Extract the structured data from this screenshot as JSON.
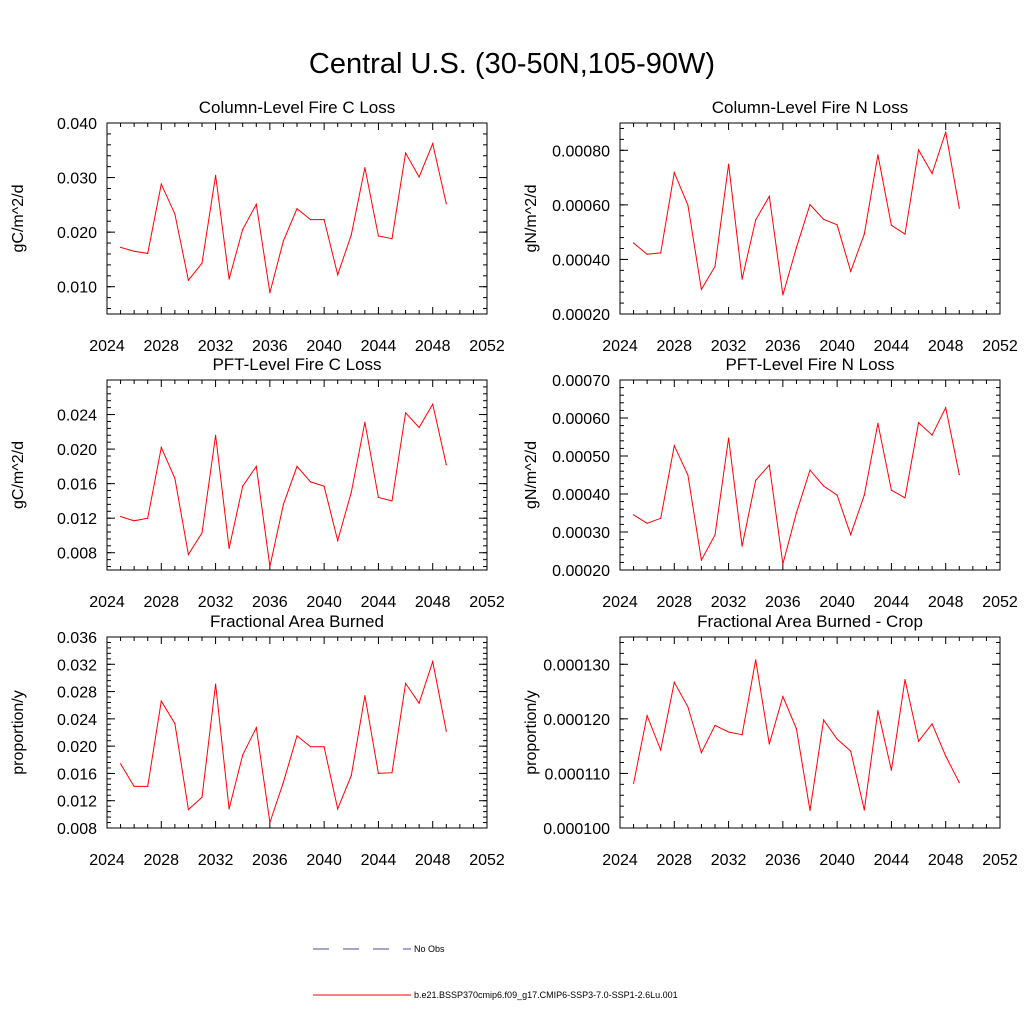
{
  "title": "Central U.S. (30-50N,105-90W)",
  "chart_data": [
    {
      "type": "line",
      "title": "Column-Level Fire C Loss",
      "ylabel": "gC/m^2/d",
      "xlim": [
        2024,
        2052
      ],
      "ylim": [
        0.005,
        0.04
      ],
      "x_ticks": [
        2024,
        2028,
        2032,
        2036,
        2040,
        2044,
        2048,
        2052
      ],
      "y_ticks": [
        "0.010",
        "0.020",
        "0.030",
        "0.040"
      ],
      "y_tick_values": [
        0.01,
        0.02,
        0.03,
        0.04
      ],
      "y_minor_step": 0.002,
      "x": [
        2025,
        2026,
        2027,
        2028,
        2029,
        2030,
        2031,
        2032,
        2033,
        2034,
        2035,
        2036,
        2037,
        2038,
        2039,
        2040,
        2041,
        2042,
        2043,
        2044,
        2045,
        2046,
        2047,
        2048,
        2049
      ],
      "series": [
        {
          "name": "b.e21.BSSP370cmip6.f09_g17.CMIP6-SSP3-7.0-SSP1-2.6Lu.001",
          "color": "#ff0000",
          "values": [
            0.0172,
            0.0165,
            0.0161,
            0.0288,
            0.0233,
            0.0112,
            0.0143,
            0.0304,
            0.0114,
            0.0205,
            0.0251,
            0.0089,
            0.0184,
            0.0243,
            0.0223,
            0.0223,
            0.0122,
            0.0195,
            0.0318,
            0.0193,
            0.0188,
            0.0345,
            0.0301,
            0.0362,
            0.0252
          ]
        }
      ]
    },
    {
      "type": "line",
      "title": "Column-Level Fire N Loss",
      "ylabel": "gN/m^2/d",
      "xlim": [
        2024,
        2052
      ],
      "ylim": [
        0.0002,
        0.0009
      ],
      "x_ticks": [
        2024,
        2028,
        2032,
        2036,
        2040,
        2044,
        2048,
        2052
      ],
      "y_ticks": [
        "0.00020",
        "0.00040",
        "0.00060",
        "0.00080"
      ],
      "y_tick_values": [
        0.0002,
        0.0004,
        0.0006,
        0.0008
      ],
      "y_minor_step": 4e-05,
      "x": [
        2025,
        2026,
        2027,
        2028,
        2029,
        2030,
        2031,
        2032,
        2033,
        2034,
        2035,
        2036,
        2037,
        2038,
        2039,
        2040,
        2041,
        2042,
        2043,
        2044,
        2045,
        2046,
        2047,
        2048,
        2049
      ],
      "series": [
        {
          "name": "b.e21.BSSP370cmip6.f09_g17.CMIP6-SSP3-7.0-SSP1-2.6Lu.001",
          "color": "#ff0000",
          "values": [
            0.00046,
            0.000419,
            0.000424,
            0.000718,
            0.000599,
            0.00029,
            0.000374,
            0.000749,
            0.000328,
            0.000545,
            0.000631,
            0.00027,
            0.000443,
            0.000601,
            0.000547,
            0.000527,
            0.000356,
            0.000493,
            0.000783,
            0.000525,
            0.000493,
            0.000801,
            0.000715,
            0.000867,
            0.000588
          ]
        }
      ]
    },
    {
      "type": "line",
      "title": "PFT-Level Fire C Loss",
      "ylabel": "gC/m^2/d",
      "xlim": [
        2024,
        2052
      ],
      "ylim": [
        0.006,
        0.028
      ],
      "x_ticks": [
        2024,
        2028,
        2032,
        2036,
        2040,
        2044,
        2048,
        2052
      ],
      "y_ticks": [
        "0.008",
        "0.012",
        "0.016",
        "0.020",
        "0.024"
      ],
      "y_tick_values": [
        0.008,
        0.012,
        0.016,
        0.02,
        0.024
      ],
      "y_minor_step": 0.0008,
      "x": [
        2025,
        2026,
        2027,
        2028,
        2029,
        2030,
        2031,
        2032,
        2033,
        2034,
        2035,
        2036,
        2037,
        2038,
        2039,
        2040,
        2041,
        2042,
        2043,
        2044,
        2045,
        2046,
        2047,
        2048,
        2049
      ],
      "series": [
        {
          "name": "b.e21.BSSP370cmip6.f09_g17.CMIP6-SSP3-7.0-SSP1-2.6Lu.001",
          "color": "#ff0000",
          "values": [
            0.0122,
            0.0117,
            0.012,
            0.0202,
            0.0166,
            0.0078,
            0.0103,
            0.0216,
            0.0085,
            0.0157,
            0.018,
            0.0064,
            0.0136,
            0.018,
            0.0162,
            0.0157,
            0.0094,
            0.015,
            0.0231,
            0.0144,
            0.014,
            0.0242,
            0.0225,
            0.0252,
            0.0182
          ]
        }
      ]
    },
    {
      "type": "line",
      "title": "PFT-Level Fire N Loss",
      "ylabel": "gN/m^2/d",
      "xlim": [
        2024,
        2052
      ],
      "ylim": [
        0.0002,
        0.0007
      ],
      "x_ticks": [
        2024,
        2028,
        2032,
        2036,
        2040,
        2044,
        2048,
        2052
      ],
      "y_ticks": [
        "0.00020",
        "0.00030",
        "0.00040",
        "0.00050",
        "0.00060",
        "0.00070"
      ],
      "y_tick_values": [
        0.0002,
        0.0003,
        0.0004,
        0.0005,
        0.0006,
        0.0007
      ],
      "y_minor_step": 2e-05,
      "x": [
        2025,
        2026,
        2027,
        2028,
        2029,
        2030,
        2031,
        2032,
        2033,
        2034,
        2035,
        2036,
        2037,
        2038,
        2039,
        2040,
        2041,
        2042,
        2043,
        2044,
        2045,
        2046,
        2047,
        2048,
        2049
      ],
      "series": [
        {
          "name": "b.e21.BSSP370cmip6.f09_g17.CMIP6-SSP3-7.0-SSP1-2.6Lu.001",
          "color": "#ff0000",
          "values": [
            0.000345,
            0.000323,
            0.000336,
            0.000527,
            0.00045,
            0.000226,
            0.000292,
            0.000547,
            0.000263,
            0.000436,
            0.000476,
            0.000216,
            0.00035,
            0.000463,
            0.000421,
            0.000397,
            0.000293,
            0.000397,
            0.000586,
            0.00041,
            0.00039,
            0.000588,
            0.000555,
            0.000627,
            0.000451
          ]
        }
      ]
    },
    {
      "type": "line",
      "title": "Fractional Area Burned",
      "ylabel": "proportion/y",
      "xlim": [
        2024,
        2052
      ],
      "ylim": [
        0.008,
        0.036
      ],
      "x_ticks": [
        2024,
        2028,
        2032,
        2036,
        2040,
        2044,
        2048,
        2052
      ],
      "y_ticks": [
        "0.008",
        "0.012",
        "0.016",
        "0.020",
        "0.024",
        "0.028",
        "0.032",
        "0.036"
      ],
      "y_tick_values": [
        0.008,
        0.012,
        0.016,
        0.02,
        0.024,
        0.028,
        0.032,
        0.036
      ],
      "y_minor_step": 0.0008,
      "x": [
        2025,
        2026,
        2027,
        2028,
        2029,
        2030,
        2031,
        2032,
        2033,
        2034,
        2035,
        2036,
        2037,
        2038,
        2039,
        2040,
        2041,
        2042,
        2043,
        2044,
        2045,
        2046,
        2047,
        2048,
        2049
      ],
      "series": [
        {
          "name": "b.e21.BSSP370cmip6.f09_g17.CMIP6-SSP3-7.0-SSP1-2.6Lu.001",
          "color": "#ff0000",
          "values": [
            0.0174,
            0.0141,
            0.0141,
            0.0266,
            0.0233,
            0.0107,
            0.0125,
            0.0291,
            0.0108,
            0.0187,
            0.0227,
            0.0088,
            0.0147,
            0.0215,
            0.0199,
            0.0199,
            0.0108,
            0.0157,
            0.0274,
            0.016,
            0.0161,
            0.0292,
            0.0263,
            0.0324,
            0.0222
          ]
        }
      ]
    },
    {
      "type": "line",
      "title": "Fractional Area Burned - Crop",
      "ylabel": "proportion/y",
      "xlim": [
        2024,
        2052
      ],
      "ylim": [
        0.0001,
        0.000135
      ],
      "x_ticks": [
        2024,
        2028,
        2032,
        2036,
        2040,
        2044,
        2048,
        2052
      ],
      "y_ticks": [
        "0.000100",
        "0.000110",
        "0.000120",
        "0.000130"
      ],
      "y_tick_values": [
        0.0001,
        0.00011,
        0.00012,
        0.00013
      ],
      "y_minor_step": 2e-06,
      "x": [
        2025,
        2026,
        2027,
        2028,
        2029,
        2030,
        2031,
        2032,
        2033,
        2034,
        2035,
        2036,
        2037,
        2038,
        2039,
        2040,
        2041,
        2042,
        2043,
        2044,
        2045,
        2046,
        2047,
        2048,
        2049
      ],
      "series": [
        {
          "name": "b.e21.BSSP370cmip6.f09_g17.CMIP6-SSP3-7.0-SSP1-2.6Lu.001",
          "color": "#ff0000",
          "values": [
            0.0001082,
            0.0001206,
            0.0001143,
            0.0001267,
            0.0001222,
            0.0001138,
            0.0001188,
            0.0001176,
            0.0001171,
            0.0001308,
            0.0001154,
            0.0001241,
            0.0001182,
            0.0001032,
            0.0001198,
            0.0001163,
            0.0001141,
            0.0001033,
            0.0001215,
            0.0001106,
            0.0001272,
            0.0001159,
            0.0001191,
            0.0001132,
            0.0001083
          ]
        }
      ]
    }
  ],
  "legend": {
    "entries": [
      {
        "label": "No Obs",
        "color": "#4a4a9a",
        "dash": true
      },
      {
        "label": "b.e21.BSSP370cmip6.f09_g17.CMIP6-SSP3-7.0-SSP1-2.6Lu.001",
        "color": "#ff0000",
        "dash": false
      }
    ]
  }
}
